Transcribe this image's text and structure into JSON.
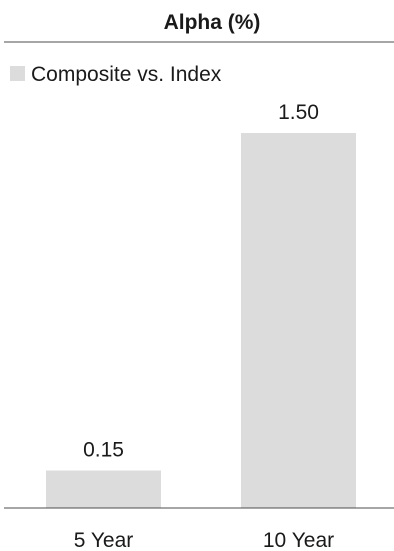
{
  "chart_data": {
    "type": "bar",
    "title": "Alpha (%)",
    "categories": [
      "5 Year",
      "10 Year"
    ],
    "series": [
      {
        "name": "Composite vs. Index",
        "values": [
          0.15,
          1.5
        ],
        "value_labels": [
          "0.15",
          "1.50"
        ]
      }
    ],
    "xlabel": "",
    "ylabel": "",
    "ylim": [
      0,
      1.6
    ],
    "grid": false,
    "legend_position": "top-left",
    "colors": {
      "bar": "#dcdcdc",
      "axis": "#4d4d4d",
      "text": "#1a1a1a"
    }
  }
}
